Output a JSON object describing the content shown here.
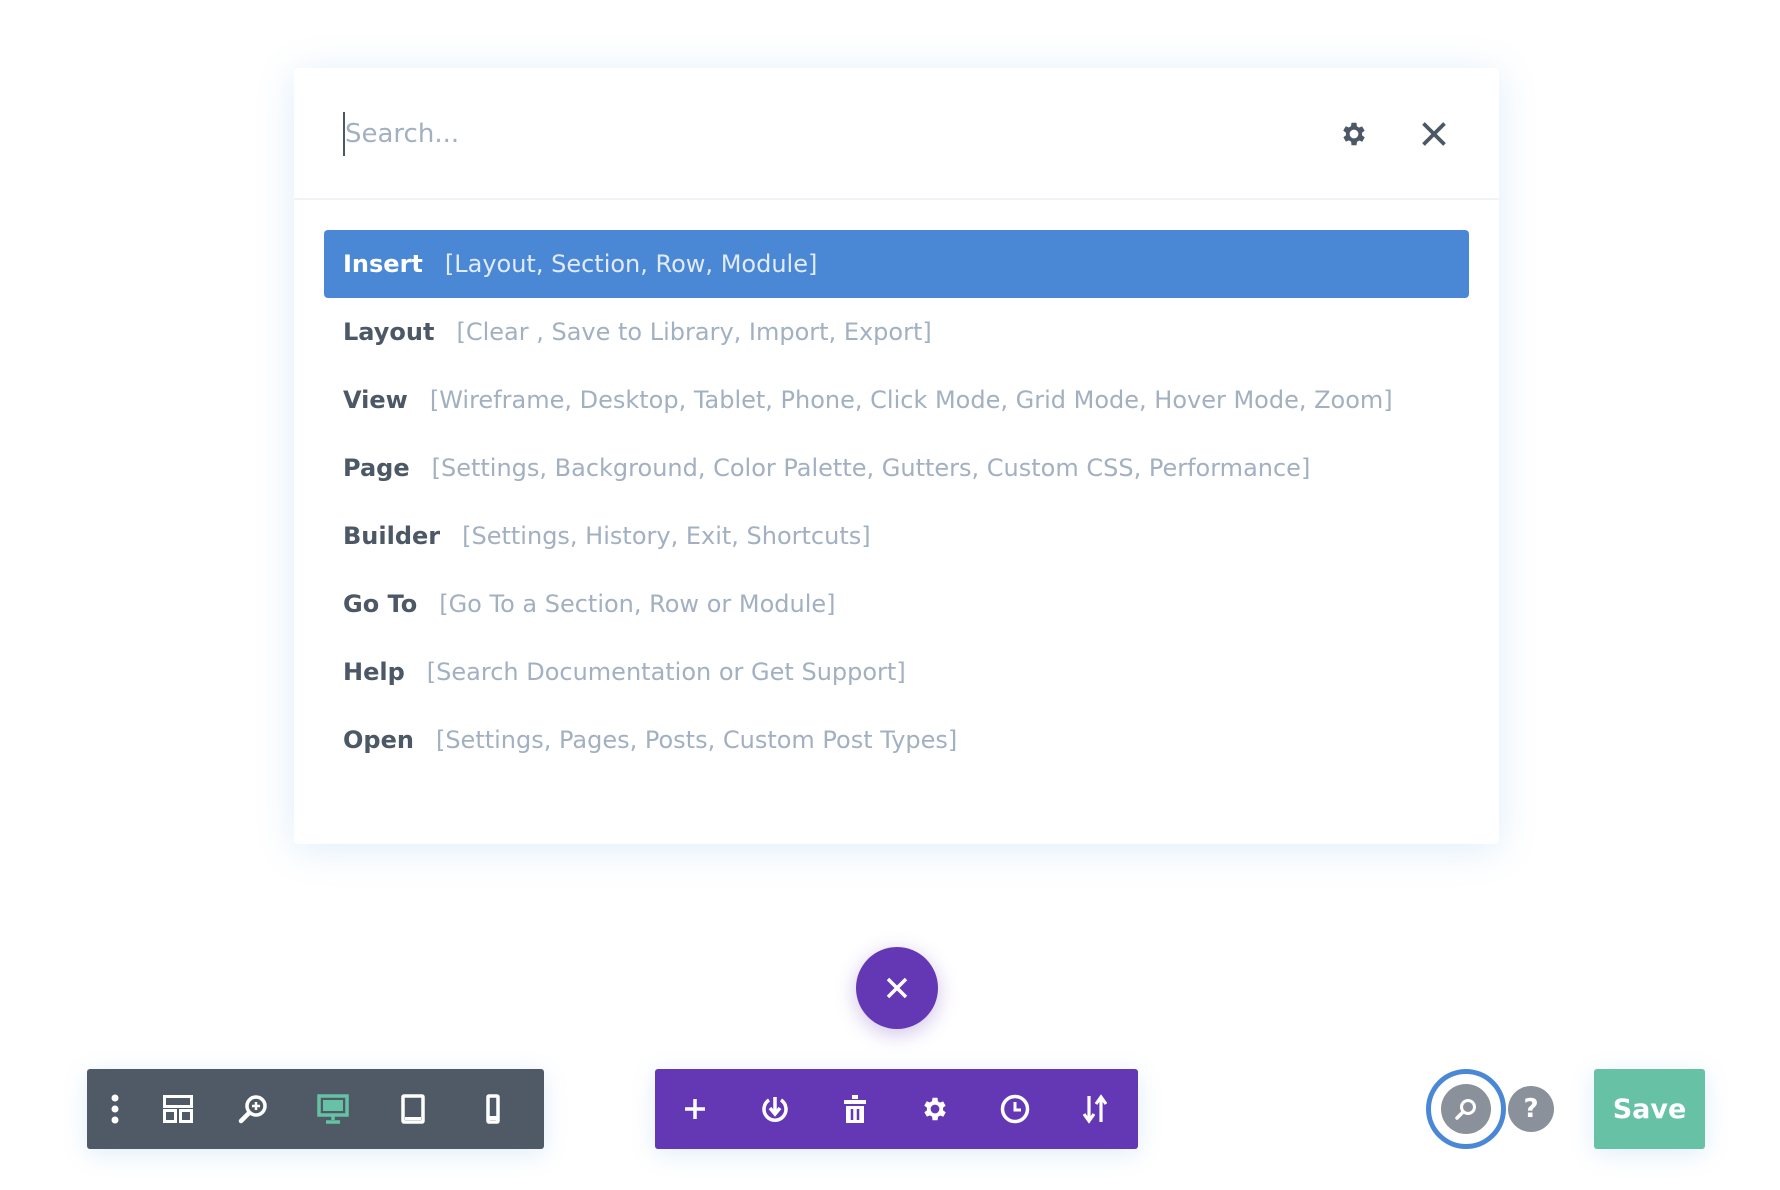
{
  "search": {
    "placeholder": "Search..."
  },
  "commands": [
    {
      "key": "Insert",
      "value": "[Layout, Section, Row, Module]",
      "active": true
    },
    {
      "key": "Layout",
      "value": "[Clear , Save to Library, Import, Export]"
    },
    {
      "key": "View",
      "value": "[Wireframe, Desktop, Tablet, Phone, Click Mode, Grid Mode, Hover Mode, Zoom]"
    },
    {
      "key": "Page",
      "value": "[Settings, Background, Color Palette, Gutters, Custom CSS, Performance]"
    },
    {
      "key": "Builder",
      "value": "[Settings, History, Exit, Shortcuts]"
    },
    {
      "key": "Go To",
      "value": "[Go To a Section, Row or Module]"
    },
    {
      "key": "Help",
      "value": "[Search Documentation or Get Support]"
    },
    {
      "key": "Open",
      "value": "[Settings, Pages, Posts, Custom Post Types]"
    }
  ],
  "left_toolbar": [
    "more-icon",
    "wireframe-icon",
    "zoom-icon",
    "desktop-icon",
    "tablet-icon",
    "phone-icon"
  ],
  "active_view": "desktop",
  "page_toolbar": [
    "add-icon",
    "portability-icon",
    "trash-icon",
    "settings-icon",
    "history-icon",
    "sort-icon"
  ],
  "help_label": "?",
  "save_label": "Save",
  "colors": {
    "accent_blue": "#4a88d6",
    "purple": "#6437b4",
    "dark_bar": "#4f5a66",
    "save_green": "#67c1a5",
    "active_view": "#67c1a5"
  }
}
